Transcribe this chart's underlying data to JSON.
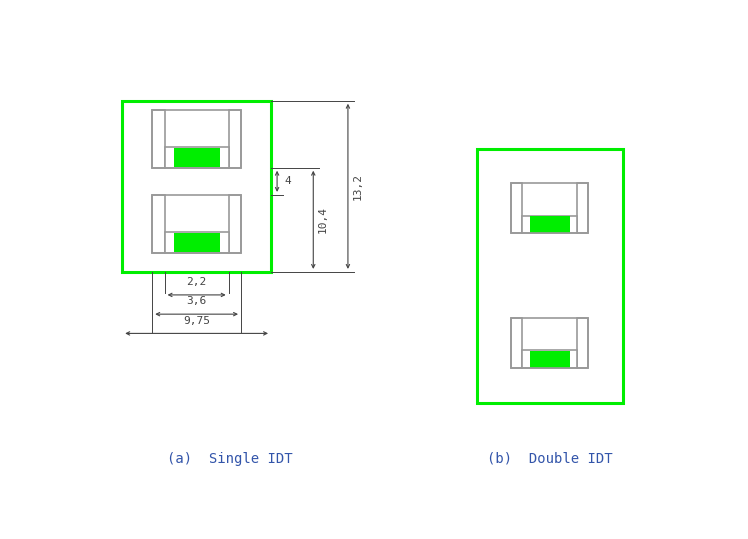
{
  "bg_color": "#ffffff",
  "green_bright": "#00ee00",
  "gray_outline": "#999999",
  "dim_color": "#444444",
  "label_color": "#3355aa",
  "fig_width": 7.48,
  "fig_height": 5.39,
  "caption_a": "(a)  Single IDT",
  "caption_b": "(b)  Double IDT",
  "dim_4": "4",
  "dim_10_4": "10,4",
  "dim_13_2": "13,2",
  "dim_2_2": "2,2",
  "dim_3_6": "3,6",
  "dim_9_75": "9,75"
}
